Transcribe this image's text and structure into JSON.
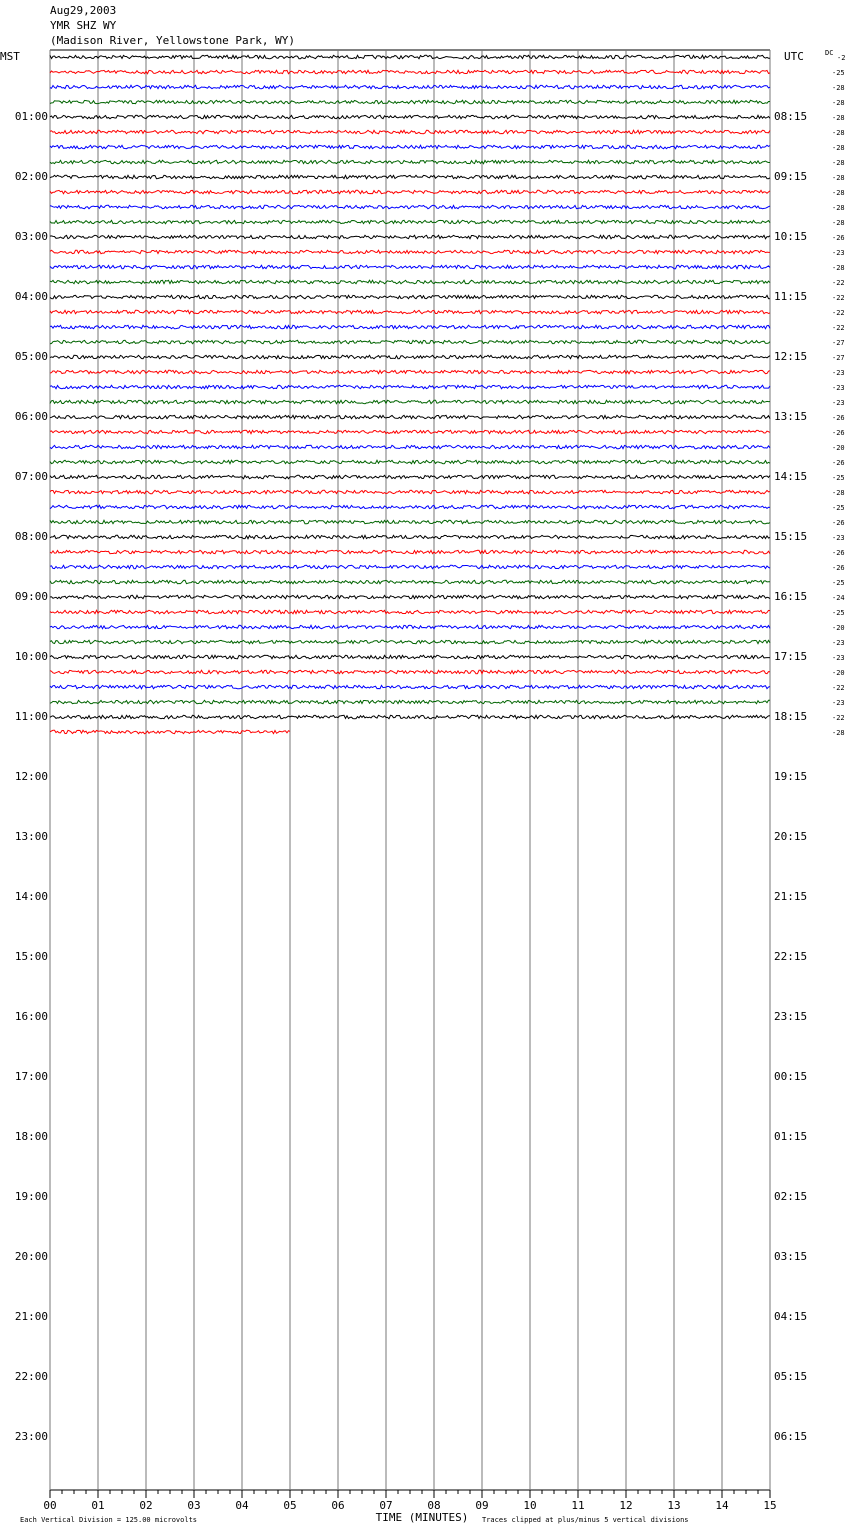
{
  "chart_data": {
    "type": "helicorder",
    "title": [
      "Aug29,2003",
      "YMR SHZ WY",
      "(Madison River, Yellowstone Park, WY)"
    ],
    "left_axis_title": "MST",
    "right_axis_title": "UTC",
    "dc_title": "DC",
    "left_labels": [
      "01:00",
      "02:00",
      "03:00",
      "04:00",
      "05:00",
      "06:00",
      "07:00",
      "08:00",
      "09:00",
      "10:00",
      "11:00",
      "12:00",
      "13:00",
      "14:00",
      "15:00",
      "16:00",
      "17:00",
      "18:00",
      "19:00",
      "20:00",
      "21:00",
      "22:00",
      "23:00"
    ],
    "right_labels": [
      "08:15",
      "09:15",
      "10:15",
      "11:15",
      "12:15",
      "13:15",
      "14:15",
      "15:15",
      "16:15",
      "17:15",
      "18:15",
      "19:15",
      "20:15",
      "21:15",
      "22:15",
      "23:15",
      "00:15",
      "01:15",
      "02:15",
      "03:15",
      "04:15",
      "05:15",
      "06:15"
    ],
    "trace_colors": [
      "#000000",
      "#ff0000",
      "#0000ff",
      "#006400"
    ],
    "dc_offsets": [
      -2,
      -25,
      -28,
      -28,
      -28,
      -28,
      -28,
      -28,
      -28,
      -28,
      -28,
      -28,
      -26,
      -23,
      -28,
      -22,
      -22,
      -22,
      -22,
      -27,
      -27,
      -23,
      -23,
      -23,
      -26,
      -26,
      -20,
      -26,
      -25,
      -28,
      -25,
      -26,
      -23,
      -26,
      -26,
      -25,
      -24,
      -25,
      -20,
      -23,
      -23,
      -20,
      -22,
      -23,
      -22,
      -28
    ],
    "last_trace_end": 5,
    "xlim": [
      0,
      15
    ],
    "xticks": [
      {
        "value": 0,
        "label": "00"
      },
      {
        "value": 1,
        "label": "01"
      },
      {
        "value": 2,
        "label": "02"
      },
      {
        "value": 3,
        "label": "03"
      },
      {
        "value": 4,
        "label": "04"
      },
      {
        "value": 5,
        "label": "05"
      },
      {
        "value": 6,
        "label": "06"
      },
      {
        "value": 7,
        "label": "07"
      },
      {
        "value": 8,
        "label": "08"
      },
      {
        "value": 9,
        "label": "09"
      },
      10,
      11,
      12,
      13,
      14,
      15
    ],
    "xlabel": "TIME (MINUTES)",
    "footer_left": "Each Vertical Division =  125.00 microvolts",
    "footer_right": "Traces clipped at plus/minus 5 vertical divisions"
  }
}
